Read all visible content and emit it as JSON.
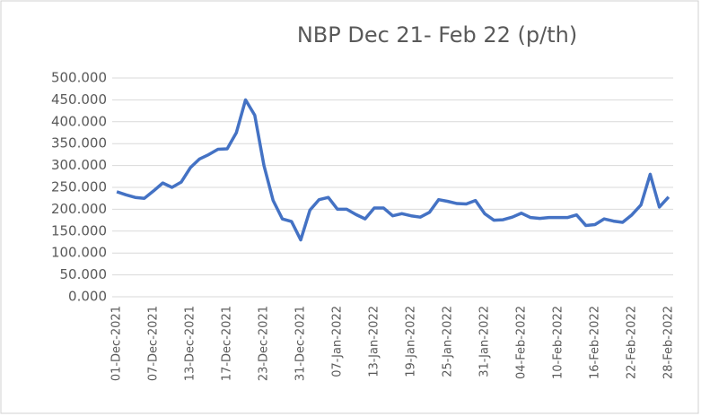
{
  "chart_data": {
    "type": "line",
    "title": "NBP Dec 21- Feb 22 (p/th)",
    "categories": [
      "01-Dec-2021",
      null,
      null,
      null,
      "07-Dec-2021",
      null,
      null,
      null,
      "13-Dec-2021",
      null,
      null,
      null,
      "17-Dec-2021",
      null,
      null,
      null,
      "23-Dec-2021",
      null,
      null,
      null,
      "31-Dec-2021",
      null,
      null,
      null,
      "07-Jan-2022",
      null,
      null,
      null,
      "13-Jan-2022",
      null,
      null,
      null,
      "19-Jan-2022",
      null,
      null,
      null,
      "25-Jan-2022",
      null,
      null,
      null,
      "31-Jan-2022",
      null,
      null,
      null,
      "04-Feb-2022",
      null,
      null,
      null,
      "10-Feb-2022",
      null,
      null,
      null,
      "16-Feb-2022",
      null,
      null,
      null,
      "22-Feb-2022",
      null,
      null,
      null,
      "28-Feb-2022"
    ],
    "values": [
      240,
      233,
      227,
      225,
      242,
      260,
      250,
      262,
      295,
      315,
      325,
      337,
      338,
      375,
      450,
      415,
      300,
      220,
      178,
      172,
      130,
      198,
      222,
      227,
      200,
      200,
      188,
      178,
      203,
      203,
      185,
      190,
      185,
      182,
      193,
      222,
      218,
      213,
      212,
      220,
      190,
      175,
      176,
      182,
      191,
      181,
      179,
      181,
      181,
      181,
      187,
      163,
      165,
      178,
      173,
      170,
      187,
      210,
      280,
      205,
      228
    ],
    "color": "#4472c4",
    "ylim": [
      0,
      500
    ],
    "yticks": [
      {
        "value": 0,
        "label": "0.000"
      },
      {
        "value": 50,
        "label": "50.000"
      },
      {
        "value": 100,
        "label": "100.000"
      },
      {
        "value": 150,
        "label": "150.000"
      },
      {
        "value": 200,
        "label": "200.000"
      },
      {
        "value": 250,
        "label": "250.000"
      },
      {
        "value": 300,
        "label": "300.000"
      },
      {
        "value": 350,
        "label": "350.000"
      },
      {
        "value": 400,
        "label": "400.000"
      },
      {
        "value": 450,
        "label": "450.000"
      },
      {
        "value": 500,
        "label": "500.000"
      }
    ],
    "grid": true
  }
}
